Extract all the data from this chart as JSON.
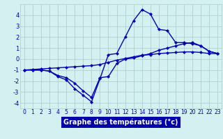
{
  "xlabel": "Graphe des températures (°c)",
  "hours": [
    0,
    1,
    2,
    3,
    4,
    5,
    6,
    7,
    8,
    9,
    10,
    11,
    12,
    13,
    14,
    15,
    16,
    17,
    18,
    19,
    20,
    21,
    22,
    23
  ],
  "curve_peak": [
    -1.0,
    -1.0,
    -1.0,
    -1.1,
    -1.6,
    -1.9,
    -2.7,
    -3.3,
    -3.9,
    -1.8,
    0.4,
    0.5,
    2.0,
    3.5,
    4.5,
    4.1,
    2.7,
    2.6,
    1.5,
    1.5,
    1.4,
    1.2,
    0.7,
    0.5
  ],
  "curve_mid": [
    -1.0,
    -1.0,
    -1.0,
    -1.1,
    -1.5,
    -1.7,
    -2.2,
    -2.9,
    -3.5,
    -1.7,
    -1.6,
    -0.4,
    0.0,
    0.1,
    0.3,
    0.5,
    0.8,
    1.0,
    1.2,
    1.4,
    1.5,
    1.2,
    0.7,
    0.5
  ],
  "curve_flat": [
    -1.0,
    -0.95,
    -0.9,
    -0.85,
    -0.8,
    -0.75,
    -0.7,
    -0.65,
    -0.6,
    -0.5,
    -0.3,
    -0.1,
    0.05,
    0.2,
    0.35,
    0.4,
    0.5,
    0.55,
    0.6,
    0.65,
    0.65,
    0.6,
    0.5,
    0.5
  ],
  "bg_color": "#d4f0f0",
  "grid_color": "#aacccc",
  "line_color": "#0000bb",
  "marker": "D",
  "marker_size": 2.5,
  "line_width": 1.0,
  "ylim": [
    -4.5,
    5.0
  ],
  "xlim": [
    -0.5,
    23.5
  ],
  "yticks": [
    -4,
    -3,
    -2,
    -1,
    0,
    1,
    2,
    3,
    4
  ],
  "xticks": [
    0,
    1,
    2,
    3,
    4,
    5,
    6,
    7,
    8,
    9,
    10,
    11,
    12,
    13,
    14,
    15,
    16,
    17,
    18,
    19,
    20,
    21,
    22,
    23
  ],
  "xlabel_bg": "#0000aa",
  "xlabel_color": "white",
  "xlabel_fontsize": 7.0,
  "tick_fontsize": 5.5,
  "ytick_fontsize": 6.0
}
